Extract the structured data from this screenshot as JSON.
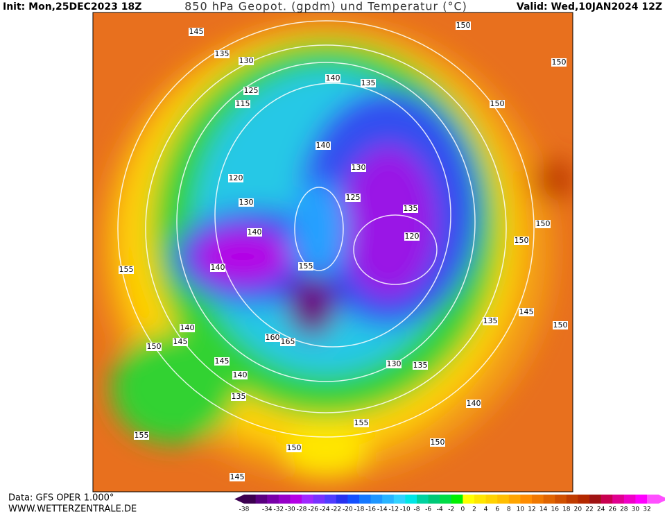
{
  "header": {
    "init": "Init: Mon,25DEC2023 18Z",
    "title": "850 hPa Geopot. (gpdm) und Temperatur (°C)",
    "valid": "Valid: Wed,10JAN2024 12Z"
  },
  "footer": {
    "source": "Data: GFS OPER 1.000°",
    "website": "WWW.WETTERZENTRALE.DE"
  },
  "color_scale": {
    "labels": [
      -38,
      -34,
      -32,
      -30,
      -28,
      -26,
      -24,
      -22,
      -20,
      -18,
      -16,
      -14,
      -12,
      -10,
      -8,
      -6,
      -4,
      -2,
      0,
      2,
      4,
      6,
      8,
      10,
      12,
      14,
      16,
      18,
      20,
      22,
      24,
      26,
      28,
      30,
      32
    ],
    "colors": [
      "#3c0050",
      "#5a0080",
      "#7800a8",
      "#9600c8",
      "#b400e6",
      "#a028ff",
      "#7832ff",
      "#503cff",
      "#2832f0",
      "#1450ff",
      "#1478ff",
      "#1e96ff",
      "#28b4ff",
      "#32d2ff",
      "#00e6e6",
      "#00d2a0",
      "#00c878",
      "#00dc46",
      "#00f000",
      "#ffff00",
      "#ffe600",
      "#ffd200",
      "#ffbe00",
      "#ffa500",
      "#ff8c00",
      "#f07800",
      "#e06400",
      "#d05000",
      "#c03c00",
      "#b42800",
      "#a01414",
      "#c80050",
      "#e00090",
      "#f000c8",
      "#ff00ff",
      "#ff50ff"
    ]
  },
  "contour_labels": [
    145,
    150,
    150,
    135,
    130,
    140,
    135,
    125,
    115,
    150,
    140,
    130,
    120,
    125,
    130,
    135,
    150,
    140,
    120,
    150,
    155,
    140,
    155,
    135,
    145,
    150,
    140,
    160,
    165,
    150,
    145,
    130,
    135,
    145,
    140,
    135,
    140,
    155,
    155,
    150,
    150,
    145
  ]
}
